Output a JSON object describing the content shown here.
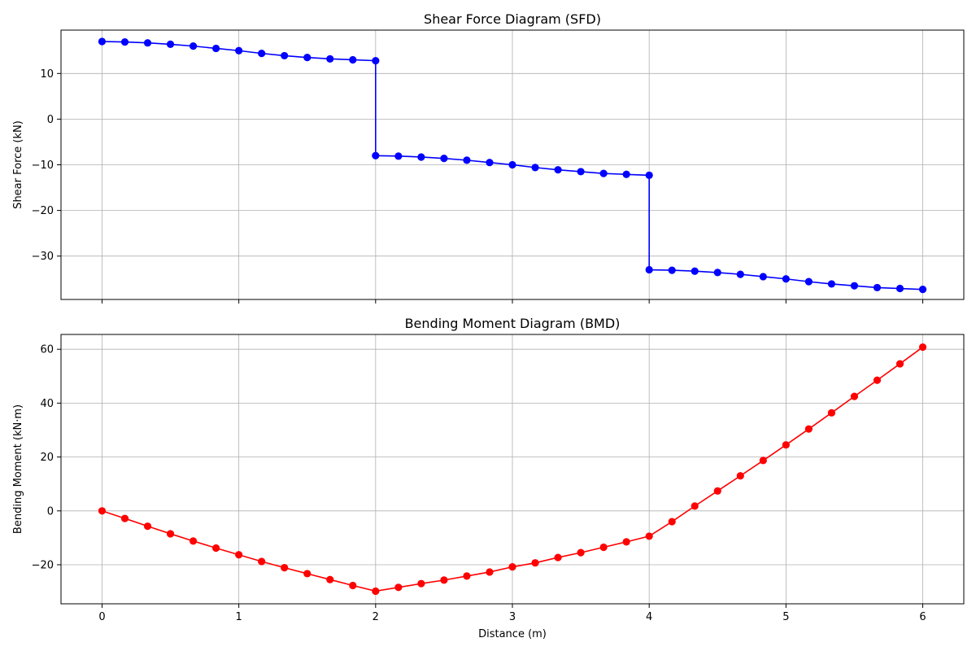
{
  "chart_data": [
    {
      "type": "line",
      "title": "Shear Force Diagram (SFD)",
      "xlabel": "",
      "ylabel": "Shear Force (kN)",
      "xlim": [
        -0.3,
        6.3
      ],
      "ylim": [
        -39.5,
        19.5
      ],
      "xticks": [
        0,
        1,
        2,
        3,
        4,
        5,
        6
      ],
      "xtick_labels": [
        "",
        "",
        "",
        "",
        "",
        "",
        ""
      ],
      "yticks": [
        -30,
        -20,
        -10,
        0,
        10
      ],
      "ytick_labels": [
        "−30",
        "−20",
        "−10",
        "0",
        "10"
      ],
      "grid": true,
      "series": [
        {
          "color": "#0000ff",
          "x": [
            0,
            0.1667,
            0.3333,
            0.5,
            0.6667,
            0.8333,
            1.0,
            1.1667,
            1.3333,
            1.5,
            1.6667,
            1.8333,
            2.0,
            2.0,
            2.1667,
            2.3333,
            2.5,
            2.6667,
            2.8333,
            3.0,
            3.1667,
            3.3333,
            3.5,
            3.6667,
            3.8333,
            4.0,
            4.0,
            4.1667,
            4.3333,
            4.5,
            4.6667,
            4.8333,
            5.0,
            5.1667,
            5.3333,
            5.5,
            5.6667,
            5.8333,
            6.0
          ],
          "y": [
            17.0,
            16.9,
            16.7,
            16.4,
            16.0,
            15.5,
            15.0,
            14.4,
            13.9,
            13.5,
            13.2,
            13.0,
            12.8,
            -8.0,
            -8.1,
            -8.3,
            -8.6,
            -9.0,
            -9.5,
            -10.0,
            -10.6,
            -11.1,
            -11.5,
            -11.9,
            -12.1,
            -12.3,
            -33.0,
            -33.1,
            -33.3,
            -33.6,
            -34.0,
            -34.5,
            -35.0,
            -35.6,
            -36.1,
            -36.5,
            -36.9,
            -37.1,
            -37.3
          ]
        }
      ]
    },
    {
      "type": "line",
      "title": "Bending Moment Diagram (BMD)",
      "xlabel": "Distance (m)",
      "ylabel": "Bending Moment (kN·m)",
      "xlim": [
        -0.3,
        6.3
      ],
      "ylim": [
        -34.5,
        65.5
      ],
      "xticks": [
        0,
        1,
        2,
        3,
        4,
        5,
        6
      ],
      "xtick_labels": [
        "0",
        "1",
        "2",
        "3",
        "4",
        "5",
        "6"
      ],
      "yticks": [
        -20,
        0,
        20,
        40,
        60
      ],
      "ytick_labels": [
        "−20",
        "0",
        "20",
        "40",
        "60"
      ],
      "grid": true,
      "series": [
        {
          "color": "#ff0000",
          "x": [
            0,
            0.1667,
            0.3333,
            0.5,
            0.6667,
            0.8333,
            1.0,
            1.1667,
            1.3333,
            1.5,
            1.6667,
            1.8333,
            2.0,
            2.1667,
            2.3333,
            2.5,
            2.6667,
            2.8333,
            3.0,
            3.1667,
            3.3333,
            3.5,
            3.6667,
            3.8333,
            4.0,
            4.1667,
            4.3333,
            4.5,
            4.6667,
            4.8333,
            5.0,
            5.1667,
            5.3333,
            5.5,
            5.6667,
            5.8333,
            6.0
          ],
          "y": [
            0,
            -2.8,
            -5.7,
            -8.5,
            -11.2,
            -13.8,
            -16.3,
            -18.8,
            -21.1,
            -23.3,
            -25.5,
            -27.7,
            -29.8,
            -28.4,
            -27.0,
            -25.7,
            -24.2,
            -22.7,
            -20.8,
            -19.3,
            -17.3,
            -15.5,
            -13.5,
            -11.5,
            -9.4,
            -4.0,
            1.8,
            7.4,
            13.0,
            18.7,
            24.5,
            30.4,
            36.4,
            42.5,
            48.5,
            54.6,
            60.8
          ]
        }
      ]
    }
  ]
}
